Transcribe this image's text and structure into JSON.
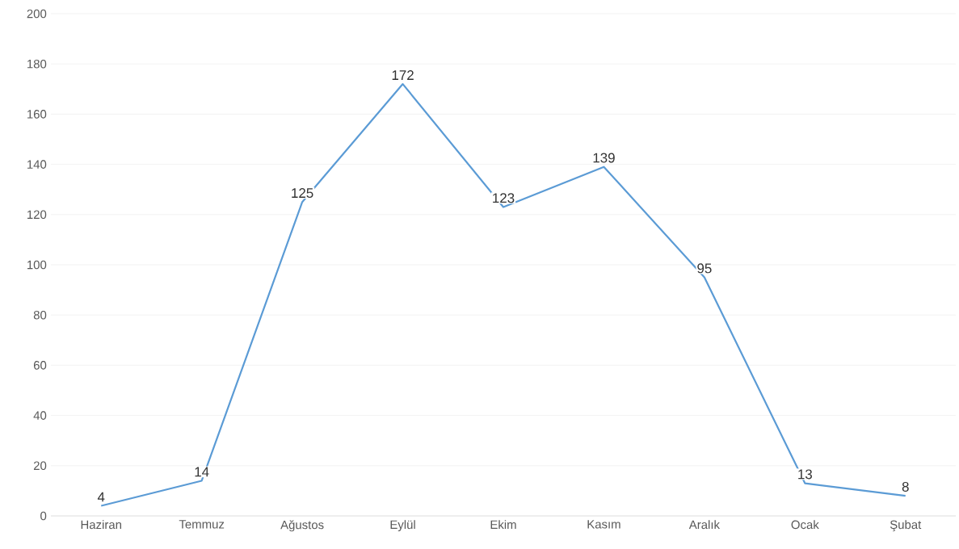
{
  "chart_data": {
    "type": "line",
    "categories": [
      "Haziran",
      "Temmuz",
      "Ağustos",
      "Eylül",
      "Ekim",
      "Kasım",
      "Aralık",
      "Ocak",
      "Şubat"
    ],
    "values": [
      4,
      14,
      125,
      172,
      123,
      139,
      95,
      13,
      8
    ],
    "color": "#5b9bd5",
    "ylim": [
      0,
      200
    ],
    "yticks": [
      0,
      20,
      40,
      60,
      80,
      100,
      120,
      140,
      160,
      180,
      200
    ],
    "grid": "y",
    "data_labels": true,
    "marker": "none",
    "line_style": "solid"
  }
}
